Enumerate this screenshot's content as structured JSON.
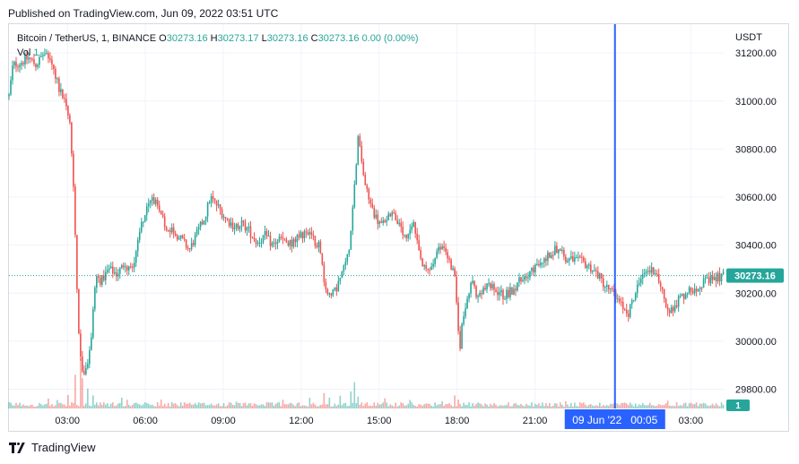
{
  "header": {
    "published": "Published on TradingView.com, Jun 09, 2022 03:51 UTC"
  },
  "legend": {
    "symbol": "Bitcoin / TetherUS, 1, BINANCE",
    "o_label": "O",
    "o_value": "30273.16",
    "h_label": "H",
    "h_value": "30273.17",
    "l_label": "L",
    "l_value": "30273.16",
    "c_label": "C",
    "c_value": "30273.16",
    "change": "0.00 (0.00%)",
    "vol_label": "Vol",
    "vol_value": "1"
  },
  "footer": {
    "brand": "TradingView"
  },
  "colors": {
    "up": "#26a69a",
    "down": "#ef5350",
    "crosshair": "#2962ff",
    "grid": "#f0f3fa",
    "axis_text": "#131722"
  },
  "chart_data": {
    "type": "candlestick",
    "title": "Bitcoin / TetherUS, 1, BINANCE",
    "currency_label": "USDT",
    "ylim": [
      29720,
      31320
    ],
    "y_ticks": [
      29800,
      30000,
      30200,
      30400,
      30600,
      30800,
      31000,
      31200
    ],
    "y_tick_labels": [
      "29800.00",
      "30000.00",
      "30200.00",
      "30400.00",
      "30600.00",
      "30800.00",
      "31000.00",
      "31200.00"
    ],
    "x_ticks": [
      "03:00",
      "06:00",
      "09:00",
      "12:00",
      "15:00",
      "18:00",
      "21:00",
      "03:00"
    ],
    "x_tick_hours": [
      3,
      6,
      9,
      12,
      15,
      18,
      21,
      27
    ],
    "x_range_hours": [
      0.75,
      28.3
    ],
    "last_price": 30273.16,
    "last_price_label": "30273.16",
    "volume_label": "1",
    "crosshair": {
      "label": "09 Jun '22   00:05",
      "hour": 24.08
    },
    "price_path": [
      [
        0.75,
        31020
      ],
      [
        0.9,
        31150
      ],
      [
        1.2,
        31160
      ],
      [
        1.5,
        31180
      ],
      [
        1.8,
        31150
      ],
      [
        2.1,
        31200
      ],
      [
        2.4,
        31150
      ],
      [
        2.7,
        31050
      ],
      [
        2.9,
        31000
      ],
      [
        3.1,
        30900
      ],
      [
        3.2,
        30720
      ],
      [
        3.3,
        30450
      ],
      [
        3.4,
        30120
      ],
      [
        3.5,
        29930
      ],
      [
        3.6,
        29860
      ],
      [
        3.7,
        29880
      ],
      [
        3.8,
        29920
      ],
      [
        3.9,
        30000
      ],
      [
        4.0,
        30150
      ],
      [
        4.1,
        30270
      ],
      [
        4.3,
        30250
      ],
      [
        4.6,
        30300
      ],
      [
        4.9,
        30280
      ],
      [
        5.2,
        30320
      ],
      [
        5.5,
        30300
      ],
      [
        5.7,
        30420
      ],
      [
        5.9,
        30510
      ],
      [
        6.1,
        30560
      ],
      [
        6.3,
        30600
      ],
      [
        6.5,
        30540
      ],
      [
        6.8,
        30480
      ],
      [
        7.1,
        30460
      ],
      [
        7.4,
        30420
      ],
      [
        7.7,
        30380
      ],
      [
        8.0,
        30450
      ],
      [
        8.3,
        30520
      ],
      [
        8.5,
        30600
      ],
      [
        8.8,
        30560
      ],
      [
        9.1,
        30510
      ],
      [
        9.4,
        30480
      ],
      [
        9.7,
        30490
      ],
      [
        10.0,
        30460
      ],
      [
        10.3,
        30410
      ],
      [
        10.6,
        30440
      ],
      [
        10.9,
        30400
      ],
      [
        11.2,
        30430
      ],
      [
        11.5,
        30400
      ],
      [
        11.8,
        30420
      ],
      [
        12.1,
        30450
      ],
      [
        12.4,
        30430
      ],
      [
        12.7,
        30400
      ],
      [
        12.9,
        30240
      ],
      [
        13.1,
        30180
      ],
      [
        13.3,
        30210
      ],
      [
        13.5,
        30260
      ],
      [
        13.7,
        30320
      ],
      [
        13.9,
        30430
      ],
      [
        14.0,
        30580
      ],
      [
        14.1,
        30720
      ],
      [
        14.2,
        30850
      ],
      [
        14.3,
        30760
      ],
      [
        14.5,
        30630
      ],
      [
        14.7,
        30560
      ],
      [
        14.9,
        30510
      ],
      [
        15.1,
        30480
      ],
      [
        15.3,
        30520
      ],
      [
        15.5,
        30540
      ],
      [
        15.7,
        30500
      ],
      [
        15.9,
        30440
      ],
      [
        16.1,
        30420
      ],
      [
        16.3,
        30500
      ],
      [
        16.5,
        30380
      ],
      [
        16.7,
        30300
      ],
      [
        16.9,
        30290
      ],
      [
        17.1,
        30330
      ],
      [
        17.3,
        30380
      ],
      [
        17.5,
        30400
      ],
      [
        17.7,
        30330
      ],
      [
        17.9,
        30270
      ],
      [
        18.0,
        30120
      ],
      [
        18.1,
        29960
      ],
      [
        18.2,
        30080
      ],
      [
        18.4,
        30200
      ],
      [
        18.6,
        30250
      ],
      [
        18.8,
        30170
      ],
      [
        19.0,
        30210
      ],
      [
        19.2,
        30230
      ],
      [
        19.5,
        30210
      ],
      [
        19.8,
        30190
      ],
      [
        20.1,
        30210
      ],
      [
        20.4,
        30250
      ],
      [
        20.7,
        30280
      ],
      [
        21.0,
        30300
      ],
      [
        21.3,
        30330
      ],
      [
        21.6,
        30370
      ],
      [
        21.9,
        30390
      ],
      [
        22.2,
        30340
      ],
      [
        22.5,
        30340
      ],
      [
        22.8,
        30330
      ],
      [
        23.1,
        30310
      ],
      [
        23.4,
        30280
      ],
      [
        23.7,
        30230
      ],
      [
        24.0,
        30200
      ],
      [
        24.3,
        30150
      ],
      [
        24.6,
        30120
      ],
      [
        24.8,
        30180
      ],
      [
        25.0,
        30240
      ],
      [
        25.3,
        30290
      ],
      [
        25.6,
        30300
      ],
      [
        25.8,
        30240
      ],
      [
        26.0,
        30160
      ],
      [
        26.2,
        30120
      ],
      [
        26.5,
        30170
      ],
      [
        26.8,
        30200
      ],
      [
        27.1,
        30220
      ],
      [
        27.4,
        30240
      ],
      [
        27.7,
        30250
      ],
      [
        28.0,
        30265
      ],
      [
        28.25,
        30273
      ]
    ],
    "volume_spikes": [
      [
        2.3,
        0.18
      ],
      [
        2.6,
        0.14
      ],
      [
        3.0,
        0.25
      ],
      [
        3.3,
        0.62
      ],
      [
        3.5,
        1.0
      ],
      [
        3.6,
        0.55
      ],
      [
        3.8,
        0.35
      ],
      [
        4.0,
        0.22
      ],
      [
        5.1,
        0.2
      ],
      [
        5.3,
        0.13
      ],
      [
        6.6,
        0.15
      ],
      [
        7.0,
        0.12
      ],
      [
        9.5,
        0.1
      ],
      [
        11.3,
        0.12
      ],
      [
        12.3,
        0.15
      ],
      [
        12.9,
        0.3
      ],
      [
        13.1,
        0.18
      ],
      [
        13.5,
        0.2
      ],
      [
        13.9,
        0.34
      ],
      [
        14.05,
        0.48
      ],
      [
        14.2,
        0.22
      ],
      [
        15.2,
        0.15
      ],
      [
        16.2,
        0.14
      ],
      [
        17.4,
        0.12
      ],
      [
        17.9,
        0.22
      ],
      [
        18.05,
        0.15
      ],
      [
        21.8,
        0.09
      ],
      [
        22.2,
        0.13
      ],
      [
        24.1,
        0.1
      ],
      [
        25.0,
        0.08
      ],
      [
        26.1,
        0.09
      ]
    ]
  }
}
